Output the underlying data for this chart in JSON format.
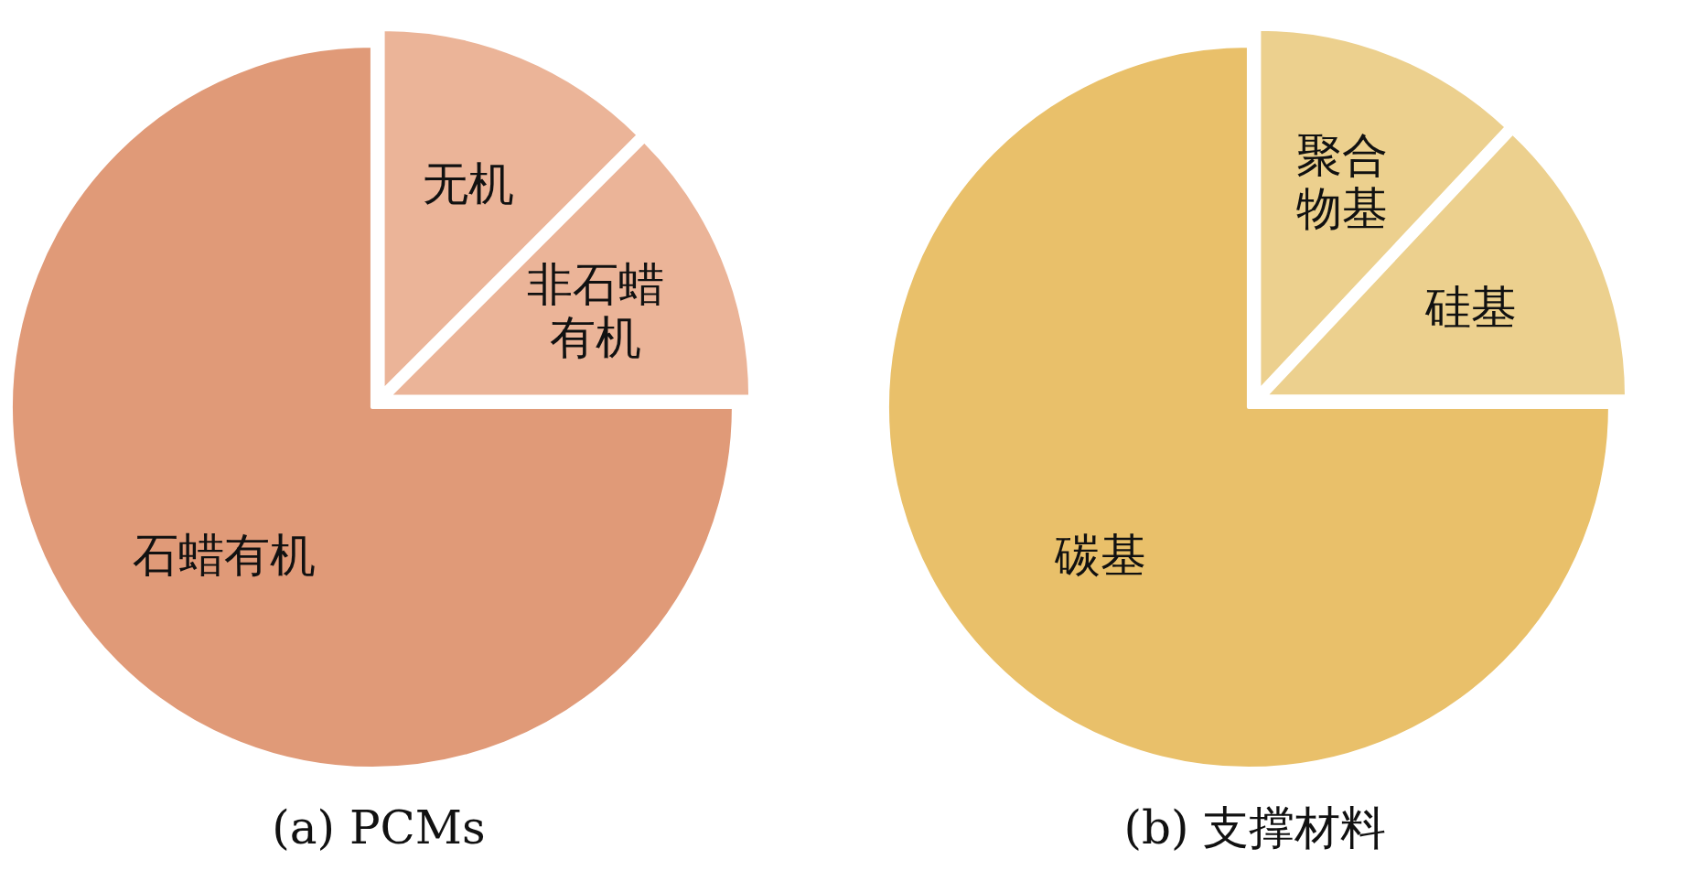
{
  "chart_data": [
    {
      "type": "pie",
      "title": "(a) PCMs",
      "categories": [
        "石蜡有机",
        "无机",
        "非石蜡有机"
      ],
      "values": [
        75,
        12.5,
        12.5
      ],
      "colors": [
        "#e09a78",
        "#ebb498",
        "#ebb498"
      ]
    },
    {
      "type": "pie",
      "title": "(b) 支撑材料",
      "categories": [
        "碳基",
        "聚合物基",
        "硅基"
      ],
      "values": [
        75,
        12,
        13
      ],
      "colors": [
        "#e9c06a",
        "#ecd08e",
        "#ecd08e"
      ]
    }
  ]
}
